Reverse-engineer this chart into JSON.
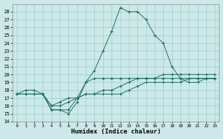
{
  "xlabel": "Humidex (Indice chaleur)",
  "bg_color": "#cce8e8",
  "grid_color": "#99cccc",
  "line_color": "#1a6b5a",
  "xlim": [
    -0.5,
    23.5
  ],
  "ylim": [
    14,
    29
  ],
  "yticks": [
    14,
    15,
    16,
    17,
    18,
    19,
    20,
    21,
    22,
    23,
    24,
    25,
    26,
    27,
    28
  ],
  "xticks": [
    0,
    1,
    2,
    3,
    4,
    5,
    6,
    7,
    8,
    9,
    10,
    11,
    12,
    13,
    14,
    15,
    16,
    17,
    18,
    19,
    20,
    21,
    22,
    23
  ],
  "series": [
    {
      "x": [
        0,
        1,
        2,
        3,
        4,
        5,
        6,
        7,
        8,
        9,
        10,
        11,
        12,
        13,
        14,
        15,
        16,
        17,
        18,
        19,
        20,
        21,
        22,
        23
      ],
      "y": [
        17.5,
        18.0,
        18.0,
        17.5,
        15.5,
        15.5,
        15.0,
        16.5,
        19.0,
        20.5,
        23.0,
        25.5,
        28.5,
        28.0,
        28.0,
        27.0,
        25.0,
        24.0,
        21.0,
        19.5,
        19.0,
        19.0,
        19.5,
        19.5
      ]
    },
    {
      "x": [
        0,
        1,
        2,
        3,
        4,
        5,
        6,
        7,
        8,
        9,
        10,
        11,
        12,
        13,
        14,
        15,
        16,
        17,
        18,
        19,
        20,
        21,
        22,
        23
      ],
      "y": [
        17.5,
        17.5,
        17.5,
        17.5,
        15.5,
        15.5,
        15.5,
        17.0,
        19.0,
        19.5,
        19.5,
        19.5,
        19.5,
        19.5,
        19.5,
        19.5,
        19.5,
        19.5,
        19.5,
        19.5,
        19.5,
        19.5,
        19.5,
        19.5
      ]
    },
    {
      "x": [
        0,
        1,
        2,
        3,
        4,
        5,
        6,
        7,
        8,
        9,
        10,
        11,
        12,
        13,
        14,
        15,
        16,
        17,
        18,
        19,
        20,
        21,
        22,
        23
      ],
      "y": [
        17.5,
        17.5,
        17.5,
        17.5,
        16.0,
        16.0,
        16.5,
        17.0,
        17.5,
        17.5,
        17.5,
        17.5,
        17.5,
        18.0,
        18.5,
        19.0,
        19.0,
        19.0,
        19.0,
        19.0,
        19.5,
        19.5,
        19.5,
        19.5
      ]
    },
    {
      "x": [
        0,
        1,
        2,
        3,
        4,
        5,
        6,
        7,
        8,
        9,
        10,
        11,
        12,
        13,
        14,
        15,
        16,
        17,
        18,
        19,
        20,
        21,
        22,
        23
      ],
      "y": [
        17.5,
        17.5,
        17.5,
        17.5,
        16.0,
        16.5,
        17.0,
        17.0,
        17.5,
        17.5,
        18.0,
        18.0,
        18.5,
        19.0,
        19.5,
        19.5,
        19.5,
        20.0,
        20.0,
        20.0,
        20.0,
        20.0,
        20.0,
        20.0
      ]
    }
  ]
}
